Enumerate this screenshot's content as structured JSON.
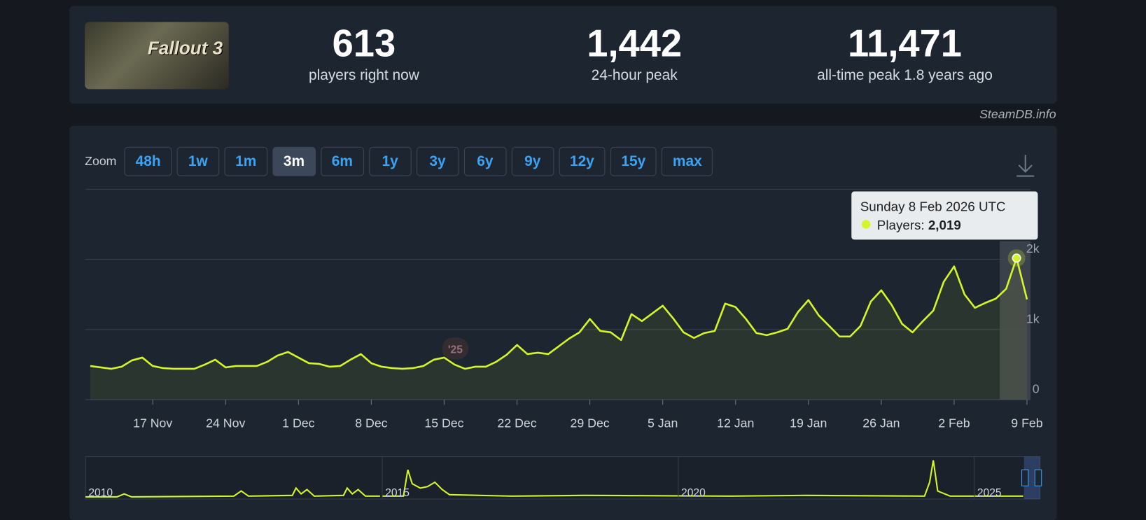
{
  "logo": "Fallout 3",
  "stats": [
    {
      "value": "613",
      "label": "players right now"
    },
    {
      "value": "1,442",
      "label": "24-hour peak"
    },
    {
      "value": "11,471",
      "label": "all-time peak 1.8 years ago"
    }
  ],
  "source": "SteamDB.info",
  "zoom": {
    "label": "Zoom",
    "options": [
      "48h",
      "1w",
      "1m",
      "3m",
      "6m",
      "1y",
      "3y",
      "6y",
      "9y",
      "12y",
      "15y",
      "max"
    ],
    "active": "3m"
  },
  "chart_data": {
    "type": "line",
    "categories": [
      null,
      null,
      null,
      null,
      null,
      null,
      "17 Nov",
      null,
      null,
      null,
      null,
      null,
      null,
      "24 Nov",
      null,
      null,
      null,
      null,
      null,
      null,
      "1 Dec",
      null,
      null,
      null,
      null,
      null,
      null,
      "8 Dec",
      null,
      null,
      null,
      null,
      null,
      null,
      "15 Dec",
      null,
      null,
      null,
      null,
      null,
      null,
      "22 Dec",
      null,
      null,
      null,
      null,
      null,
      null,
      "29 Dec",
      null,
      null,
      null,
      null,
      null,
      null,
      "5 Jan",
      null,
      null,
      null,
      null,
      null,
      null,
      "12 Jan",
      null,
      null,
      null,
      null,
      null,
      null,
      "19 Jan",
      null,
      null,
      null,
      null,
      null,
      null,
      "26 Jan",
      null,
      null,
      null,
      null,
      null,
      null,
      "2 Feb",
      null,
      null,
      null,
      null,
      null,
      null,
      "9 Feb"
    ],
    "series": [
      {
        "name": "Players",
        "color": "#d4f52a",
        "values": [
          480,
          460,
          440,
          470,
          560,
          600,
          480,
          450,
          440,
          440,
          440,
          500,
          570,
          460,
          480,
          480,
          480,
          540,
          630,
          680,
          600,
          520,
          510,
          470,
          480,
          570,
          650,
          520,
          470,
          450,
          440,
          450,
          480,
          570,
          600,
          500,
          440,
          470,
          470,
          540,
          640,
          780,
          650,
          670,
          650,
          760,
          870,
          960,
          1150,
          980,
          960,
          850,
          1220,
          1120,
          1230,
          1340,
          1160,
          960,
          880,
          950,
          980,
          1370,
          1320,
          1150,
          950,
          920,
          960,
          1010,
          1250,
          1420,
          1200,
          1050,
          900,
          900,
          1050,
          1400,
          1560,
          1350,
          1080,
          960,
          1120,
          1270,
          1680,
          1900,
          1500,
          1310,
          1380,
          1440,
          1580,
          2019,
          1430
        ]
      }
    ],
    "ylim": [
      0,
      3000
    ],
    "yticks": [
      {
        "value": 0,
        "label": "0"
      },
      {
        "value": 1000,
        "label": "1k"
      },
      {
        "value": 2000,
        "label": "2k"
      }
    ],
    "grid": true,
    "year_marker": "'25",
    "tooltip": {
      "title": "Sunday 8 Feb 2026 UTC",
      "label": "Players:",
      "value": "2,019"
    }
  },
  "navigator": {
    "years": [
      "2010",
      "2015",
      "2020",
      "2025"
    ]
  }
}
